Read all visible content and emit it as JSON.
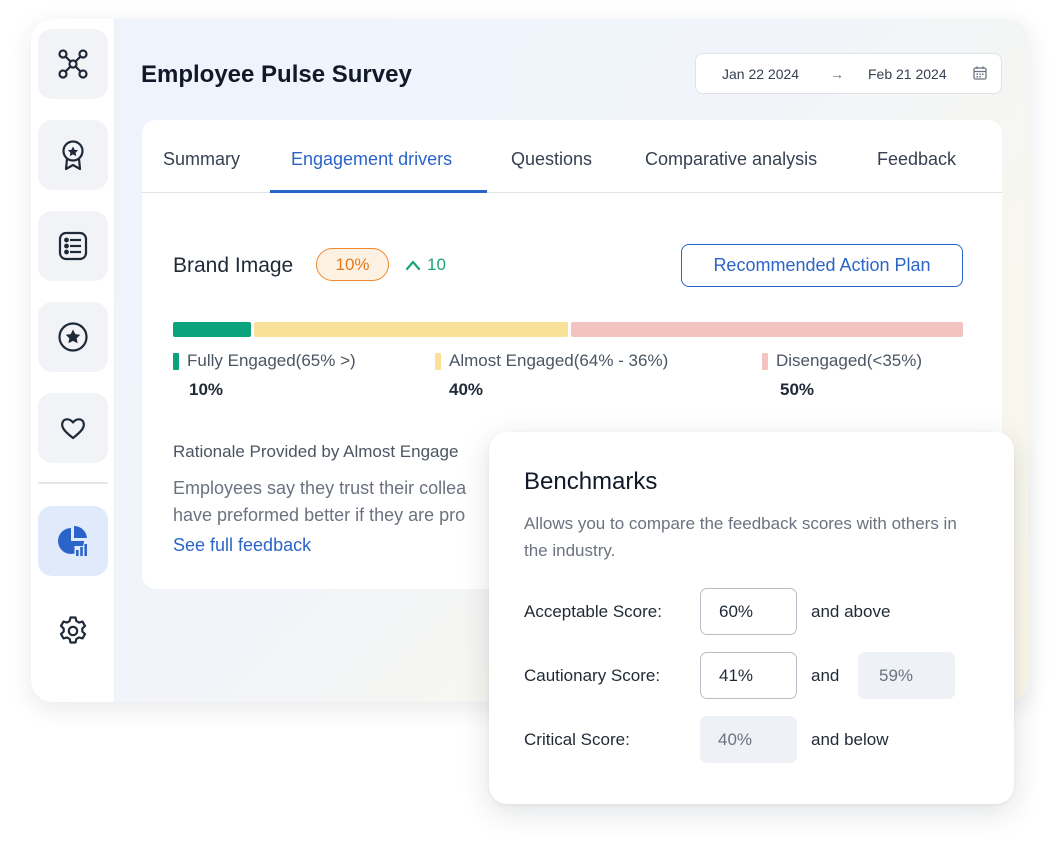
{
  "header": {
    "title": "Employee Pulse Survey",
    "date_start": "Jan 22 2024",
    "date_arrow": "→",
    "date_end": "Feb 21 2024"
  },
  "sidebar": {
    "items": [
      {
        "icon": "network-icon",
        "active": false
      },
      {
        "icon": "award-badge-icon",
        "active": false
      },
      {
        "icon": "list-icon",
        "active": false
      },
      {
        "icon": "star-icon",
        "active": false
      },
      {
        "icon": "heart-icon",
        "active": false
      },
      {
        "icon": "analytics-chart-icon",
        "active": true
      },
      {
        "icon": "gear-icon",
        "active": false
      }
    ]
  },
  "tabs": [
    {
      "label": "Summary",
      "active": false
    },
    {
      "label": "Engagement drivers",
      "active": true
    },
    {
      "label": "Questions",
      "active": false
    },
    {
      "label": "Comparative analysis",
      "active": false
    },
    {
      "label": "Feedback",
      "active": false
    }
  ],
  "driver": {
    "name": "Brand Image",
    "score_badge": "10%",
    "trend_value": "10",
    "trend_direction": "up",
    "action_button": "Recommended Action Plan"
  },
  "distribution": {
    "segments": [
      {
        "label": "Fully Engaged(65% >)",
        "value": "10%",
        "fraction": 0.1,
        "color": "#0aa37c"
      },
      {
        "label": "Almost Engaged(64% - 36%)",
        "value": "40%",
        "fraction": 0.4,
        "color": "#f9e19a"
      },
      {
        "label": "Disengaged(<35%)",
        "value": "50%",
        "fraction": 0.5,
        "color": "#f2c3c0"
      }
    ]
  },
  "rationale": {
    "title": "Rationale Provided by Almost Engage",
    "line1": "Employees say they trust their collea",
    "line2": "have preformed better if they are pro",
    "link": "See full feedback"
  },
  "benchmarks": {
    "title": "Benchmarks",
    "description": "Allows you to compare the feedback scores with others in the industry.",
    "acceptable": {
      "label": "Acceptable Score:",
      "value": "60%",
      "suffix": "and above"
    },
    "cautionary": {
      "label": "Cautionary Score:",
      "value": "41%",
      "joiner": "and",
      "upper": "59%"
    },
    "critical": {
      "label": "Critical Score:",
      "value": "40%",
      "suffix": "and below"
    }
  },
  "colors": {
    "accent": "#2b64c9",
    "badge_orange": "#ee8a2c",
    "trend_green": "#1aa57c"
  }
}
